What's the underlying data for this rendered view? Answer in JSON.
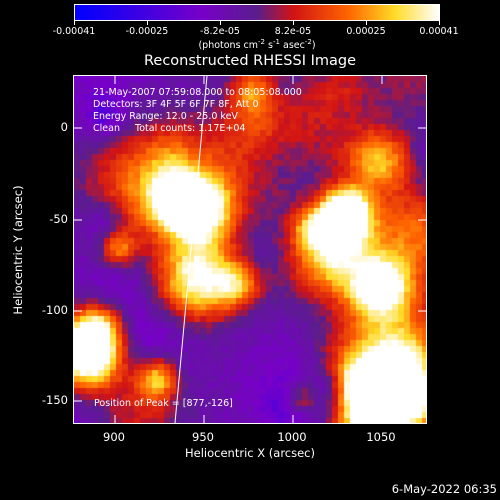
{
  "colorbar": {
    "tick_labels": [
      "-0.00041",
      "-0.00025",
      "-8.2e-05",
      "8.2e-05",
      "0.00025",
      "0.00041"
    ],
    "units_text": "(photons cm",
    "units_exp1": "-2",
    "units_mid": " s",
    "units_exp2": "-1",
    "units_end": " asec",
    "units_exp3": "-2",
    "units_close": ")"
  },
  "plot": {
    "title": "Reconstructed RHESSI Image",
    "info_lines": [
      "21-May-2007 07:59:08.000 to 08:05:08.000",
      "Detectors: 3F 4F 5F 6F 7F 8F, Att 0",
      "Energy Range: 12.0 - 25.0 keV",
      "Clean     Total counts: 1.17E+04"
    ],
    "peak_text": "Position of Peak = [877,-126]",
    "x_ticks": [
      "900",
      "950",
      "1000",
      "1050"
    ],
    "y_ticks": [
      "0",
      "-50",
      "-100",
      "-150"
    ],
    "xlabel": "Heliocentric X (arcsec)",
    "ylabel": "Heliocentric Y (arcsec)"
  },
  "footer": {
    "date": "6-May-2022 06:35"
  },
  "chart_data": {
    "type": "heatmap",
    "title": "Reconstructed RHESSI Image",
    "xlabel": "Heliocentric X (arcsec)",
    "ylabel": "Heliocentric Y (arcsec)",
    "xlim": [
      878,
      1070
    ],
    "ylim": [
      -167,
      23
    ],
    "x_ticks": [
      900,
      950,
      1000,
      1050
    ],
    "y_ticks": [
      0,
      -50,
      -100,
      -150
    ],
    "colorbar_range": [
      -0.00041,
      0.00041
    ],
    "colorbar_ticks": [
      -0.00041,
      -0.00025,
      -8.2e-05,
      8.2e-05,
      0.00025,
      0.00041
    ],
    "colormap": "blue-purple-red-orange-yellow-white",
    "peak_position": [
      877,
      -126
    ]
  }
}
